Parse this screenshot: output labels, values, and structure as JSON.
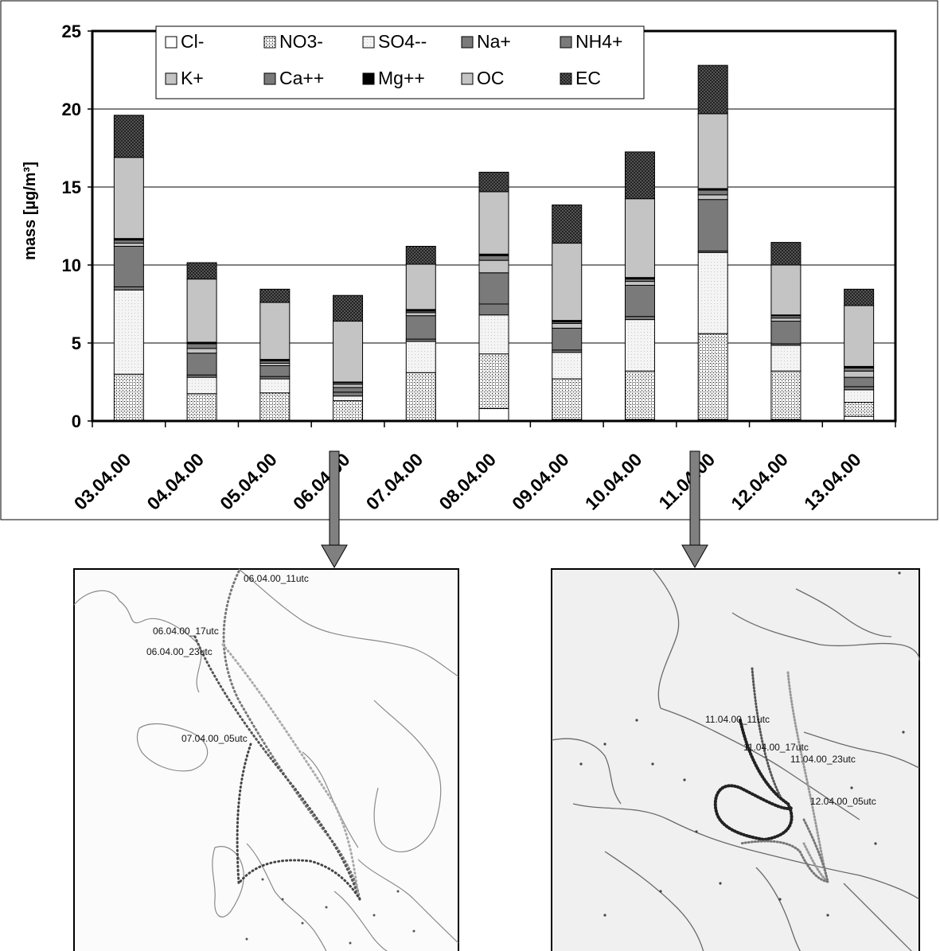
{
  "chart_data": {
    "type": "bar",
    "stacked": true,
    "ylabel": "mass [µg/m³]",
    "ylim": [
      0,
      25
    ],
    "yticks": [
      0,
      5,
      10,
      15,
      20,
      25
    ],
    "grid": true,
    "legend_position": "top",
    "categories": [
      "03.04.00",
      "04.04.00",
      "05.04.00",
      "06.04.00",
      "07.04.00",
      "08.04.00",
      "09.04.00",
      "10.04.00",
      "11.04.00",
      "12.04.00",
      "13.04.00"
    ],
    "series": [
      {
        "name": "Cl-",
        "pattern": "white",
        "values": [
          0.0,
          0.0,
          0.0,
          0.0,
          0.0,
          0.8,
          0.1,
          0.1,
          0.1,
          0.1,
          0.3
        ]
      },
      {
        "name": "NO3-",
        "pattern": "dots",
        "values": [
          3.0,
          1.75,
          1.8,
          1.3,
          3.1,
          3.5,
          2.6,
          3.1,
          5.5,
          3.1,
          0.9
        ]
      },
      {
        "name": "SO4--",
        "pattern": "light",
        "values": [
          5.4,
          1.05,
          0.9,
          0.3,
          2.0,
          2.5,
          1.7,
          3.3,
          5.2,
          1.65,
          0.8
        ]
      },
      {
        "name": "Na+",
        "pattern": "gray",
        "values": [
          0.2,
          0.15,
          0.15,
          0.25,
          0.15,
          0.7,
          0.15,
          0.2,
          0.1,
          0.1,
          0.2
        ]
      },
      {
        "name": "NH4+",
        "pattern": "gray",
        "values": [
          2.6,
          1.4,
          0.7,
          0.3,
          1.5,
          2.0,
          1.4,
          2.0,
          3.3,
          1.45,
          0.6
        ]
      },
      {
        "name": "K+",
        "pattern": "lightgray",
        "values": [
          0.2,
          0.3,
          0.15,
          0.2,
          0.2,
          0.8,
          0.3,
          0.25,
          0.3,
          0.2,
          0.4
        ]
      },
      {
        "name": "Ca++",
        "pattern": "gray",
        "values": [
          0.2,
          0.3,
          0.15,
          0.1,
          0.1,
          0.3,
          0.1,
          0.15,
          0.3,
          0.15,
          0.2
        ]
      },
      {
        "name": "Mg++",
        "pattern": "black",
        "values": [
          0.1,
          0.1,
          0.1,
          0.05,
          0.1,
          0.1,
          0.1,
          0.1,
          0.1,
          0.05,
          0.1
        ]
      },
      {
        "name": "OC",
        "pattern": "lightgray",
        "values": [
          5.2,
          4.05,
          3.65,
          3.9,
          2.9,
          4.0,
          4.95,
          5.05,
          4.8,
          3.2,
          3.9
        ]
      },
      {
        "name": "EC",
        "pattern": "darkdots",
        "values": [
          2.7,
          1.05,
          0.85,
          1.65,
          1.15,
          1.25,
          2.45,
          3.0,
          3.1,
          1.45,
          1.05
        ]
      }
    ]
  },
  "maps": [
    {
      "name": "map-06-04",
      "labels": [
        "06.04.00_11utc",
        "06.04.00_17utc",
        "06.04.00_23utc",
        "07.04.00_05utc"
      ]
    },
    {
      "name": "map-11-04",
      "labels": [
        "11.04.00_11utc",
        "11.04.00_17utc",
        "11.04.00_23utc",
        "12.04.00_05utc"
      ]
    }
  ],
  "colors": {
    "axis": "#000000",
    "grid": "#000000",
    "arrow": "#808080"
  }
}
